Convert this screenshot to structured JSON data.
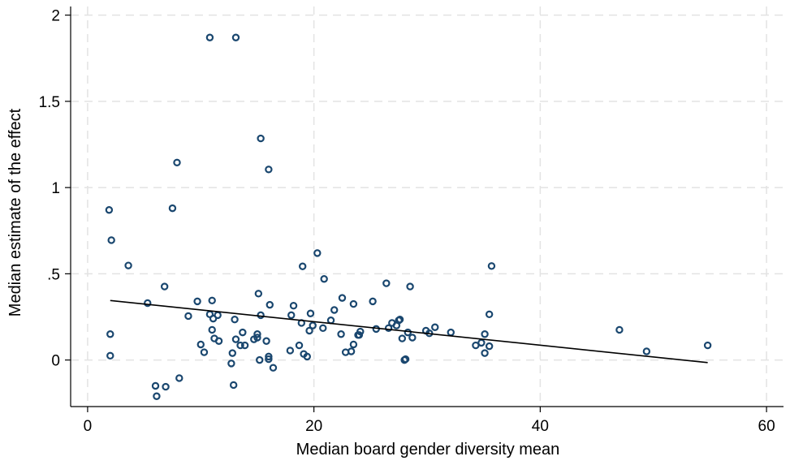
{
  "chart_data": {
    "type": "scatter",
    "xlabel": "Median board gender diversity mean",
    "ylabel": "Median estimate of the effect",
    "xlim": [
      -1.5,
      61.5
    ],
    "ylim": [
      -0.27,
      2.05
    ],
    "xticks": [
      0,
      20,
      40,
      60
    ],
    "xtick_labels": [
      "0",
      "20",
      "40",
      "60"
    ],
    "yticks": [
      0,
      0.5,
      1,
      1.5,
      2
    ],
    "ytick_labels": [
      "0",
      ".5",
      "1",
      "1.5",
      "2"
    ],
    "grid": true,
    "legend": "none",
    "colors": {
      "points": "#1a476f",
      "fit_line": "#000000",
      "grid": "#e3e3e3"
    },
    "series": [
      {
        "kind": "points",
        "x": [
          10.8,
          13.1,
          15.3,
          16.0,
          7.9,
          1.9,
          7.5,
          2.1,
          3.6,
          35.7,
          20.3,
          20.9,
          19.0,
          28.5,
          26.4,
          6.8,
          9.7,
          11.0,
          13.0,
          15.1,
          16.1,
          5.3,
          18.2,
          19.7,
          22.5,
          23.5,
          25.2,
          26.9,
          27.6,
          21.8,
          8.9,
          10.8,
          11.5,
          15.3,
          18.0,
          21.5,
          27.3,
          30.7,
          35.5,
          2.0,
          11.0,
          13.7,
          15.0,
          18.9,
          20.8,
          22.4,
          24.1,
          25.5,
          28.3,
          32.1,
          10.0,
          11.2,
          11.6,
          13.1,
          14.7,
          15.8,
          19.6,
          23.9,
          26.6,
          28.7,
          34.3,
          35.1,
          47.0,
          49.4,
          54.8,
          10.3,
          12.8,
          13.9,
          15.2,
          16.0,
          17.9,
          19.1,
          22.8,
          23.3,
          27.8,
          35.1,
          2.0,
          12.7,
          15.0,
          16.4,
          19.4,
          8.1,
          6.0,
          6.9,
          12.9,
          6.1,
          28.0,
          23.5,
          24.0,
          29.9,
          19.9,
          18.7,
          13.5,
          16.0,
          27.5,
          28.1,
          34.8,
          35.5,
          30.2,
          11.1
        ]
      },
      {
        "kind": "fit_line",
        "x": [
          2.0,
          54.8
        ],
        "y": [
          0.345,
          -0.015
        ]
      }
    ],
    "y_values_points": [
      1.87,
      1.87,
      1.285,
      1.105,
      1.145,
      0.87,
      0.88,
      0.695,
      0.548,
      0.545,
      0.62,
      0.47,
      0.543,
      0.426,
      0.445,
      0.426,
      0.34,
      0.345,
      0.235,
      0.385,
      0.32,
      0.33,
      0.315,
      0.27,
      0.36,
      0.325,
      0.34,
      0.215,
      0.235,
      0.29,
      0.255,
      0.265,
      0.26,
      0.26,
      0.26,
      0.23,
      0.2,
      0.19,
      0.265,
      0.15,
      0.175,
      0.16,
      0.15,
      0.215,
      0.185,
      0.15,
      0.165,
      0.18,
      0.16,
      0.16,
      0.09,
      0.125,
      0.11,
      0.12,
      0.12,
      0.11,
      0.17,
      0.145,
      0.185,
      0.13,
      0.085,
      0.15,
      0.175,
      0.05,
      0.085,
      0.045,
      0.04,
      0.085,
      0.0,
      0.02,
      0.055,
      0.035,
      0.045,
      0.05,
      0.125,
      0.04,
      0.025,
      -0.02,
      0.13,
      -0.045,
      0.02,
      -0.105,
      -0.15,
      -0.155,
      -0.145,
      -0.21,
      0.0,
      0.09,
      0.145,
      0.17,
      0.2,
      0.085,
      0.085,
      0.005,
      0.23,
      0.005,
      0.1,
      0.08,
      0.155,
      0.24
    ]
  }
}
